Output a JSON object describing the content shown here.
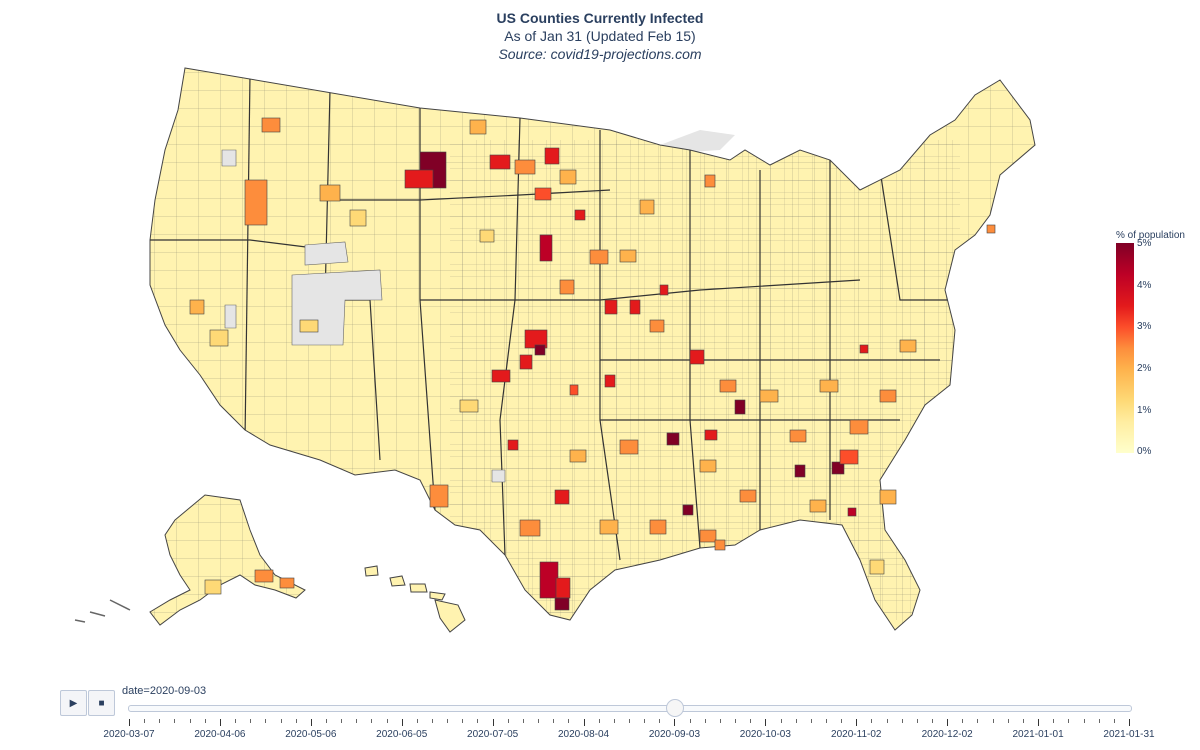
{
  "title": {
    "main": "US Counties Currently Infected",
    "subtitle": "As of Jan 31 (Updated Feb 15)",
    "source": "Source: covid19-projections.com"
  },
  "colorbar": {
    "title": "% of population",
    "ticks": [
      "5%",
      "4%",
      "3%",
      "2%",
      "1%",
      "0%"
    ],
    "colors": [
      "#ffffcc",
      "#ffeda0",
      "#fed976",
      "#feb24c",
      "#fd8d3c",
      "#fc4e2a",
      "#e31a1c",
      "#bd0026",
      "#800026"
    ]
  },
  "map": {
    "fill_light": "#fff3b0",
    "border_color": "#444444",
    "no_data_color": "#e5e5e5"
  },
  "slider": {
    "current_label": "date=2020-09-03",
    "position_fraction": 0.545,
    "ticks": [
      "2020-03-07",
      "2020-04-06",
      "2020-05-06",
      "2020-06-05",
      "2020-07-05",
      "2020-08-04",
      "2020-09-03",
      "2020-10-03",
      "2020-11-02",
      "2020-12-02",
      "2021-01-01",
      "2021-01-31"
    ]
  },
  "controls": {
    "play_icon": "play-icon",
    "stop_icon": "stop-icon"
  }
}
